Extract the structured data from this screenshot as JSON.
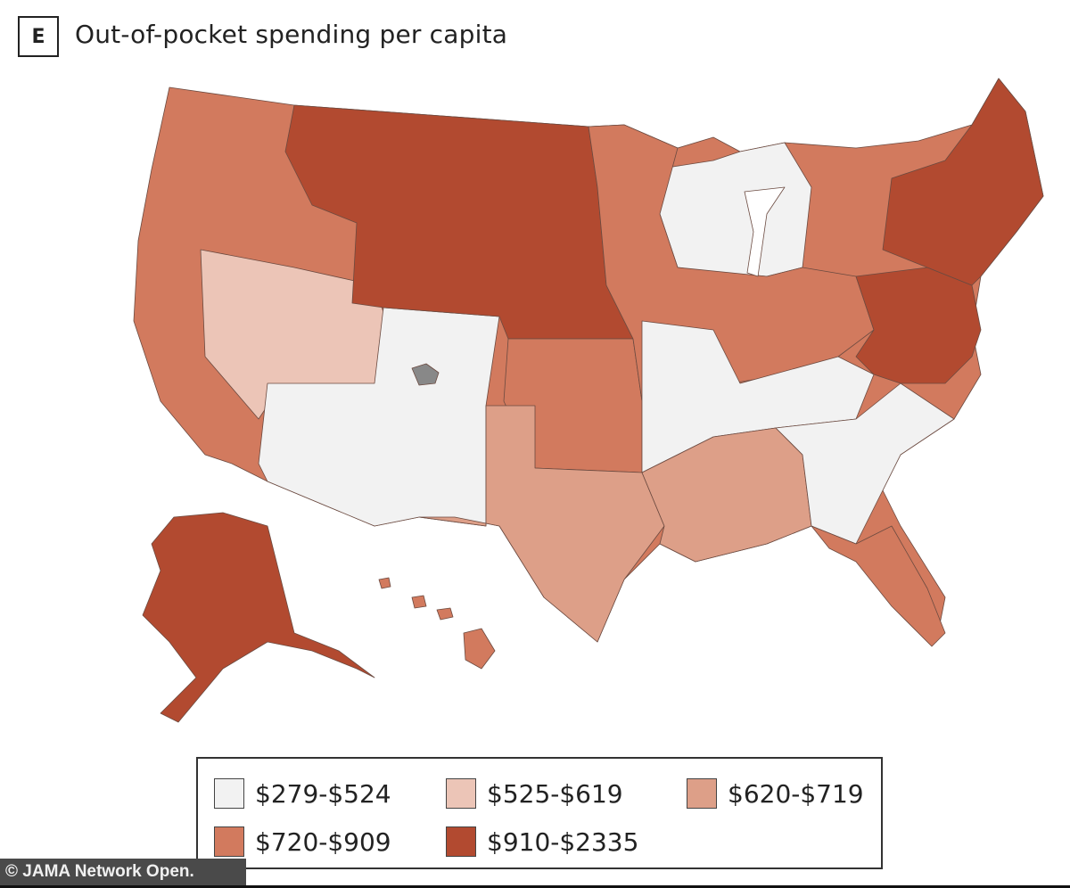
{
  "panel": {
    "letter": "E",
    "title": "Out-of-pocket spending per capita"
  },
  "legend": {
    "items": [
      {
        "label": "$279-$524",
        "color": "#f2f2f2"
      },
      {
        "label": "$525-$619",
        "color": "#ecc5b7"
      },
      {
        "label": "$620-$719",
        "color": "#dd9f88"
      },
      {
        "label": "$720-$909",
        "color": "#d27a5e"
      },
      {
        "label": "$910-$2335",
        "color": "#b24a30"
      }
    ]
  },
  "regions": {
    "west_coast": {
      "color": "#d27a5e"
    },
    "great_basin": {
      "color": "#ecc5b7"
    },
    "southwest": {
      "color": "#f2f2f2"
    },
    "northern_plains": {
      "color": "#b24a30"
    },
    "central_plains": {
      "color": "#d27a5e"
    },
    "texas": {
      "color": "#dd9f88"
    },
    "upper_midwest": {
      "color": "#f2f2f2"
    },
    "midwest": {
      "color": "#d27a5e"
    },
    "mid_south": {
      "color": "#f2f2f2"
    },
    "deep_south": {
      "color": "#dd9f88"
    },
    "southeast": {
      "color": "#f2f2f2"
    },
    "mid_atlantic": {
      "color": "#b24a30"
    },
    "northeast": {
      "color": "#b24a30"
    },
    "florida": {
      "color": "#d27a5e"
    },
    "alaska": {
      "color": "#b24a30"
    },
    "hawaii": {
      "color": "#d27a5e"
    },
    "no_data": {
      "color": "#888888"
    }
  },
  "watermark": "© JAMA Network Open."
}
